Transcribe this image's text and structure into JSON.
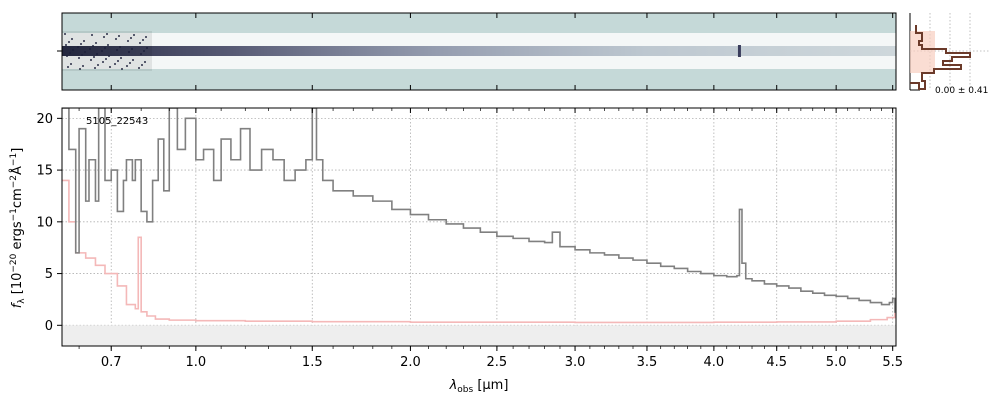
{
  "chart_data": {
    "type": "line",
    "object_id": "5105_22543",
    "xlabel_main": "λ",
    "xlabel_sub": "obs",
    "xlabel_unit": " [μm]",
    "ylabel": "f_λ [10^-20 ergs^-1 cm^-2 Å^-1]",
    "x_ticks": [
      "0.7",
      "1.0",
      "1.5",
      "2.0",
      "2.5",
      "3.0",
      "3.5",
      "4.0",
      "4.5",
      "5.0",
      "5.5"
    ],
    "x_tick_values": [
      0.7,
      1.0,
      1.5,
      2.0,
      2.5,
      3.0,
      3.5,
      4.0,
      4.5,
      5.0,
      5.5
    ],
    "y_ticks": [
      "0",
      "5",
      "10",
      "15",
      "20"
    ],
    "y_tick_values": [
      0,
      5,
      10,
      15,
      20
    ],
    "ylim": [
      -2,
      21
    ],
    "xlim": [
      0.55,
      5.53
    ],
    "x_scale": "sqrt",
    "grid": true,
    "histogram_label": "0.00 ± 0.41",
    "colors": {
      "flux": "#808080",
      "error": "#f4b8b8",
      "zero_band": "#eeeeee",
      "histogram": "#6b3a2a",
      "hist_fill": "#f8cfc0",
      "sheet_bg": "#c5d9d8",
      "sheet_dark": "#1c1f3a"
    },
    "series": [
      {
        "role": "flux",
        "x": [
          0.55,
          0.57,
          0.59,
          0.6,
          0.62,
          0.63,
          0.65,
          0.66,
          0.68,
          0.7,
          0.72,
          0.74,
          0.75,
          0.77,
          0.78,
          0.8,
          0.82,
          0.84,
          0.86,
          0.88,
          0.9,
          0.93,
          0.96,
          1.0,
          1.03,
          1.07,
          1.1,
          1.14,
          1.18,
          1.22,
          1.27,
          1.32,
          1.37,
          1.42,
          1.47,
          1.5,
          1.52,
          1.55,
          1.6,
          1.7,
          1.8,
          1.9,
          2.0,
          2.1,
          2.2,
          2.3,
          2.4,
          2.5,
          2.6,
          2.7,
          2.8,
          2.85,
          2.9,
          3.0,
          3.1,
          3.2,
          3.3,
          3.4,
          3.5,
          3.6,
          3.7,
          3.8,
          3.9,
          4.0,
          4.1,
          4.18,
          4.2,
          4.22,
          4.25,
          4.3,
          4.4,
          4.5,
          4.6,
          4.7,
          4.8,
          4.9,
          5.0,
          5.1,
          5.2,
          5.3,
          5.4,
          5.47,
          5.5,
          5.52
        ],
        "values": [
          21,
          17,
          7,
          19,
          12,
          16,
          12,
          21,
          14,
          15,
          11,
          14,
          16,
          14,
          16,
          11,
          10,
          14,
          18,
          13,
          21,
          17,
          20,
          16,
          17,
          14,
          18,
          16,
          19,
          15,
          17,
          16,
          14,
          15,
          16,
          21,
          16,
          14,
          13,
          12.5,
          12,
          11.2,
          10.7,
          10.2,
          9.8,
          9.4,
          9.0,
          8.6,
          8.4,
          8.1,
          8.0,
          9.0,
          7.6,
          7.3,
          7.0,
          6.8,
          6.5,
          6.3,
          6.0,
          5.7,
          5.5,
          5.2,
          5.0,
          4.8,
          4.7,
          4.8,
          11.2,
          6.0,
          4.5,
          4.3,
          4.0,
          3.8,
          3.6,
          3.3,
          3.1,
          2.9,
          2.8,
          2.6,
          2.4,
          2.2,
          2.0,
          2.2,
          2.6,
          1.2
        ]
      },
      {
        "role": "error",
        "x": [
          0.55,
          0.57,
          0.59,
          0.62,
          0.65,
          0.68,
          0.72,
          0.75,
          0.78,
          0.79,
          0.8,
          0.82,
          0.85,
          0.9,
          1.0,
          1.2,
          1.5,
          2.0,
          3.0,
          4.0,
          4.5,
          5.0,
          5.3,
          5.45,
          5.52
        ],
        "values": [
          14,
          10,
          7,
          6.5,
          5.8,
          5,
          3.8,
          2.0,
          1.6,
          8.5,
          1.3,
          0.9,
          0.6,
          0.5,
          0.45,
          0.4,
          0.35,
          0.3,
          0.28,
          0.3,
          0.33,
          0.4,
          0.55,
          0.75,
          1.2
        ]
      }
    ],
    "histogram": {
      "bin_centers": [
        -2.0,
        -1.5,
        -1.0,
        -0.75,
        -0.5,
        -0.25,
        0.0,
        0.25,
        0.5,
        0.75,
        1.0,
        1.5,
        2.0
      ],
      "counts": [
        0.15,
        0.25,
        0.2,
        0.4,
        0.85,
        0.55,
        0.7,
        1.0,
        0.6,
        0.2,
        0.15,
        0.2,
        0.1
      ]
    }
  }
}
